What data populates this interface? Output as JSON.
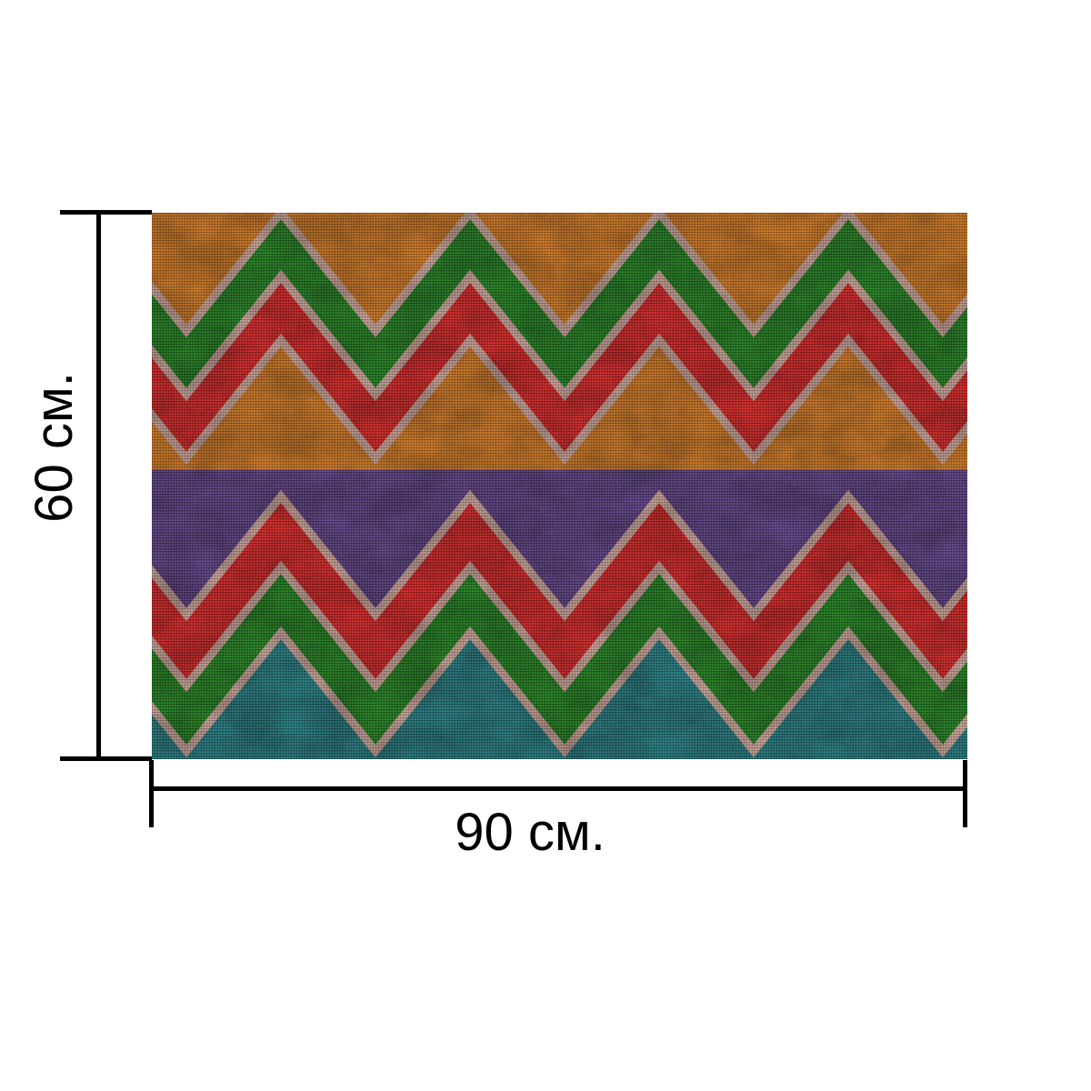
{
  "page": {
    "background_color": "#ffffff",
    "annotation_color": "#000000"
  },
  "dimensions": {
    "height_label": "60 см.",
    "width_label": "90 см."
  },
  "rug": {
    "description": "rectangular woven rug with multicolor chevron zigzag pattern",
    "texture": "burlap weave",
    "outline_color": "#c59e93",
    "palette": {
      "orange": "#c9731f",
      "green": "#1e7a1c",
      "red": "#cc2121",
      "purple": "#583c7e",
      "teal": "#20757a"
    },
    "background_zones_top_to_bottom": [
      {
        "name": "top-background",
        "color_key": "orange"
      },
      {
        "name": "middle-band",
        "color_key": "purple"
      },
      {
        "name": "bottom-background",
        "color_key": "teal"
      }
    ],
    "chevron_bands_top_to_bottom": [
      {
        "name": "upper-green-chevron",
        "color_key": "green"
      },
      {
        "name": "upper-red-chevron",
        "color_key": "red"
      },
      {
        "name": "lower-red-chevron",
        "color_key": "red"
      },
      {
        "name": "lower-green-chevron",
        "color_key": "green"
      }
    ],
    "rows_visual_order_top_to_bottom": [
      "orange",
      "green",
      "red",
      "orange",
      "purple",
      "red",
      "green",
      "teal"
    ]
  }
}
